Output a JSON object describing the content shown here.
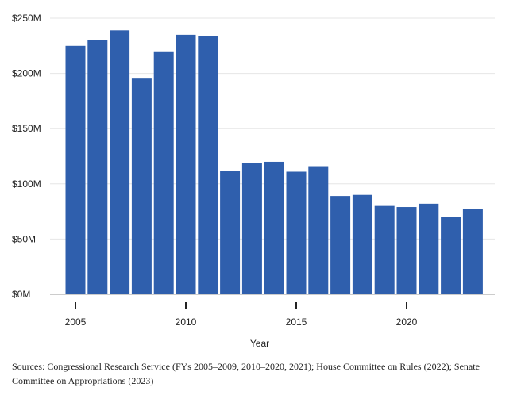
{
  "chart_data": {
    "type": "bar",
    "x": [
      2005,
      2006,
      2007,
      2008,
      2009,
      2010,
      2011,
      2012,
      2013,
      2014,
      2015,
      2016,
      2017,
      2018,
      2019,
      2020,
      2021,
      2022,
      2023
    ],
    "values": [
      225,
      230,
      239,
      196,
      220,
      235,
      234,
      112,
      119,
      120,
      111,
      116,
      89,
      90,
      80,
      79,
      82,
      70,
      77
    ],
    "xlabel": "Year",
    "ylabel": "",
    "ylim": [
      0,
      250
    ],
    "yticks": [
      0,
      50,
      100,
      150,
      200,
      250
    ],
    "ytick_labels": [
      "$0M",
      "$50M",
      "$100M",
      "$150M",
      "$200M",
      "$250M"
    ],
    "xticks": [
      2005,
      2010,
      2015,
      2020
    ],
    "xtick_labels": [
      "2005",
      "2010",
      "2015",
      "2020"
    ],
    "grid": true,
    "bar_color": "#2f5fad",
    "grid_color": "#e6e6e6"
  },
  "source_note": "Sources: Congressional Research Service (FYs 2005–2009, 2010–2020, 2021); House Committee on Rules (2022); Senate Committee on Appropriations (2023)"
}
